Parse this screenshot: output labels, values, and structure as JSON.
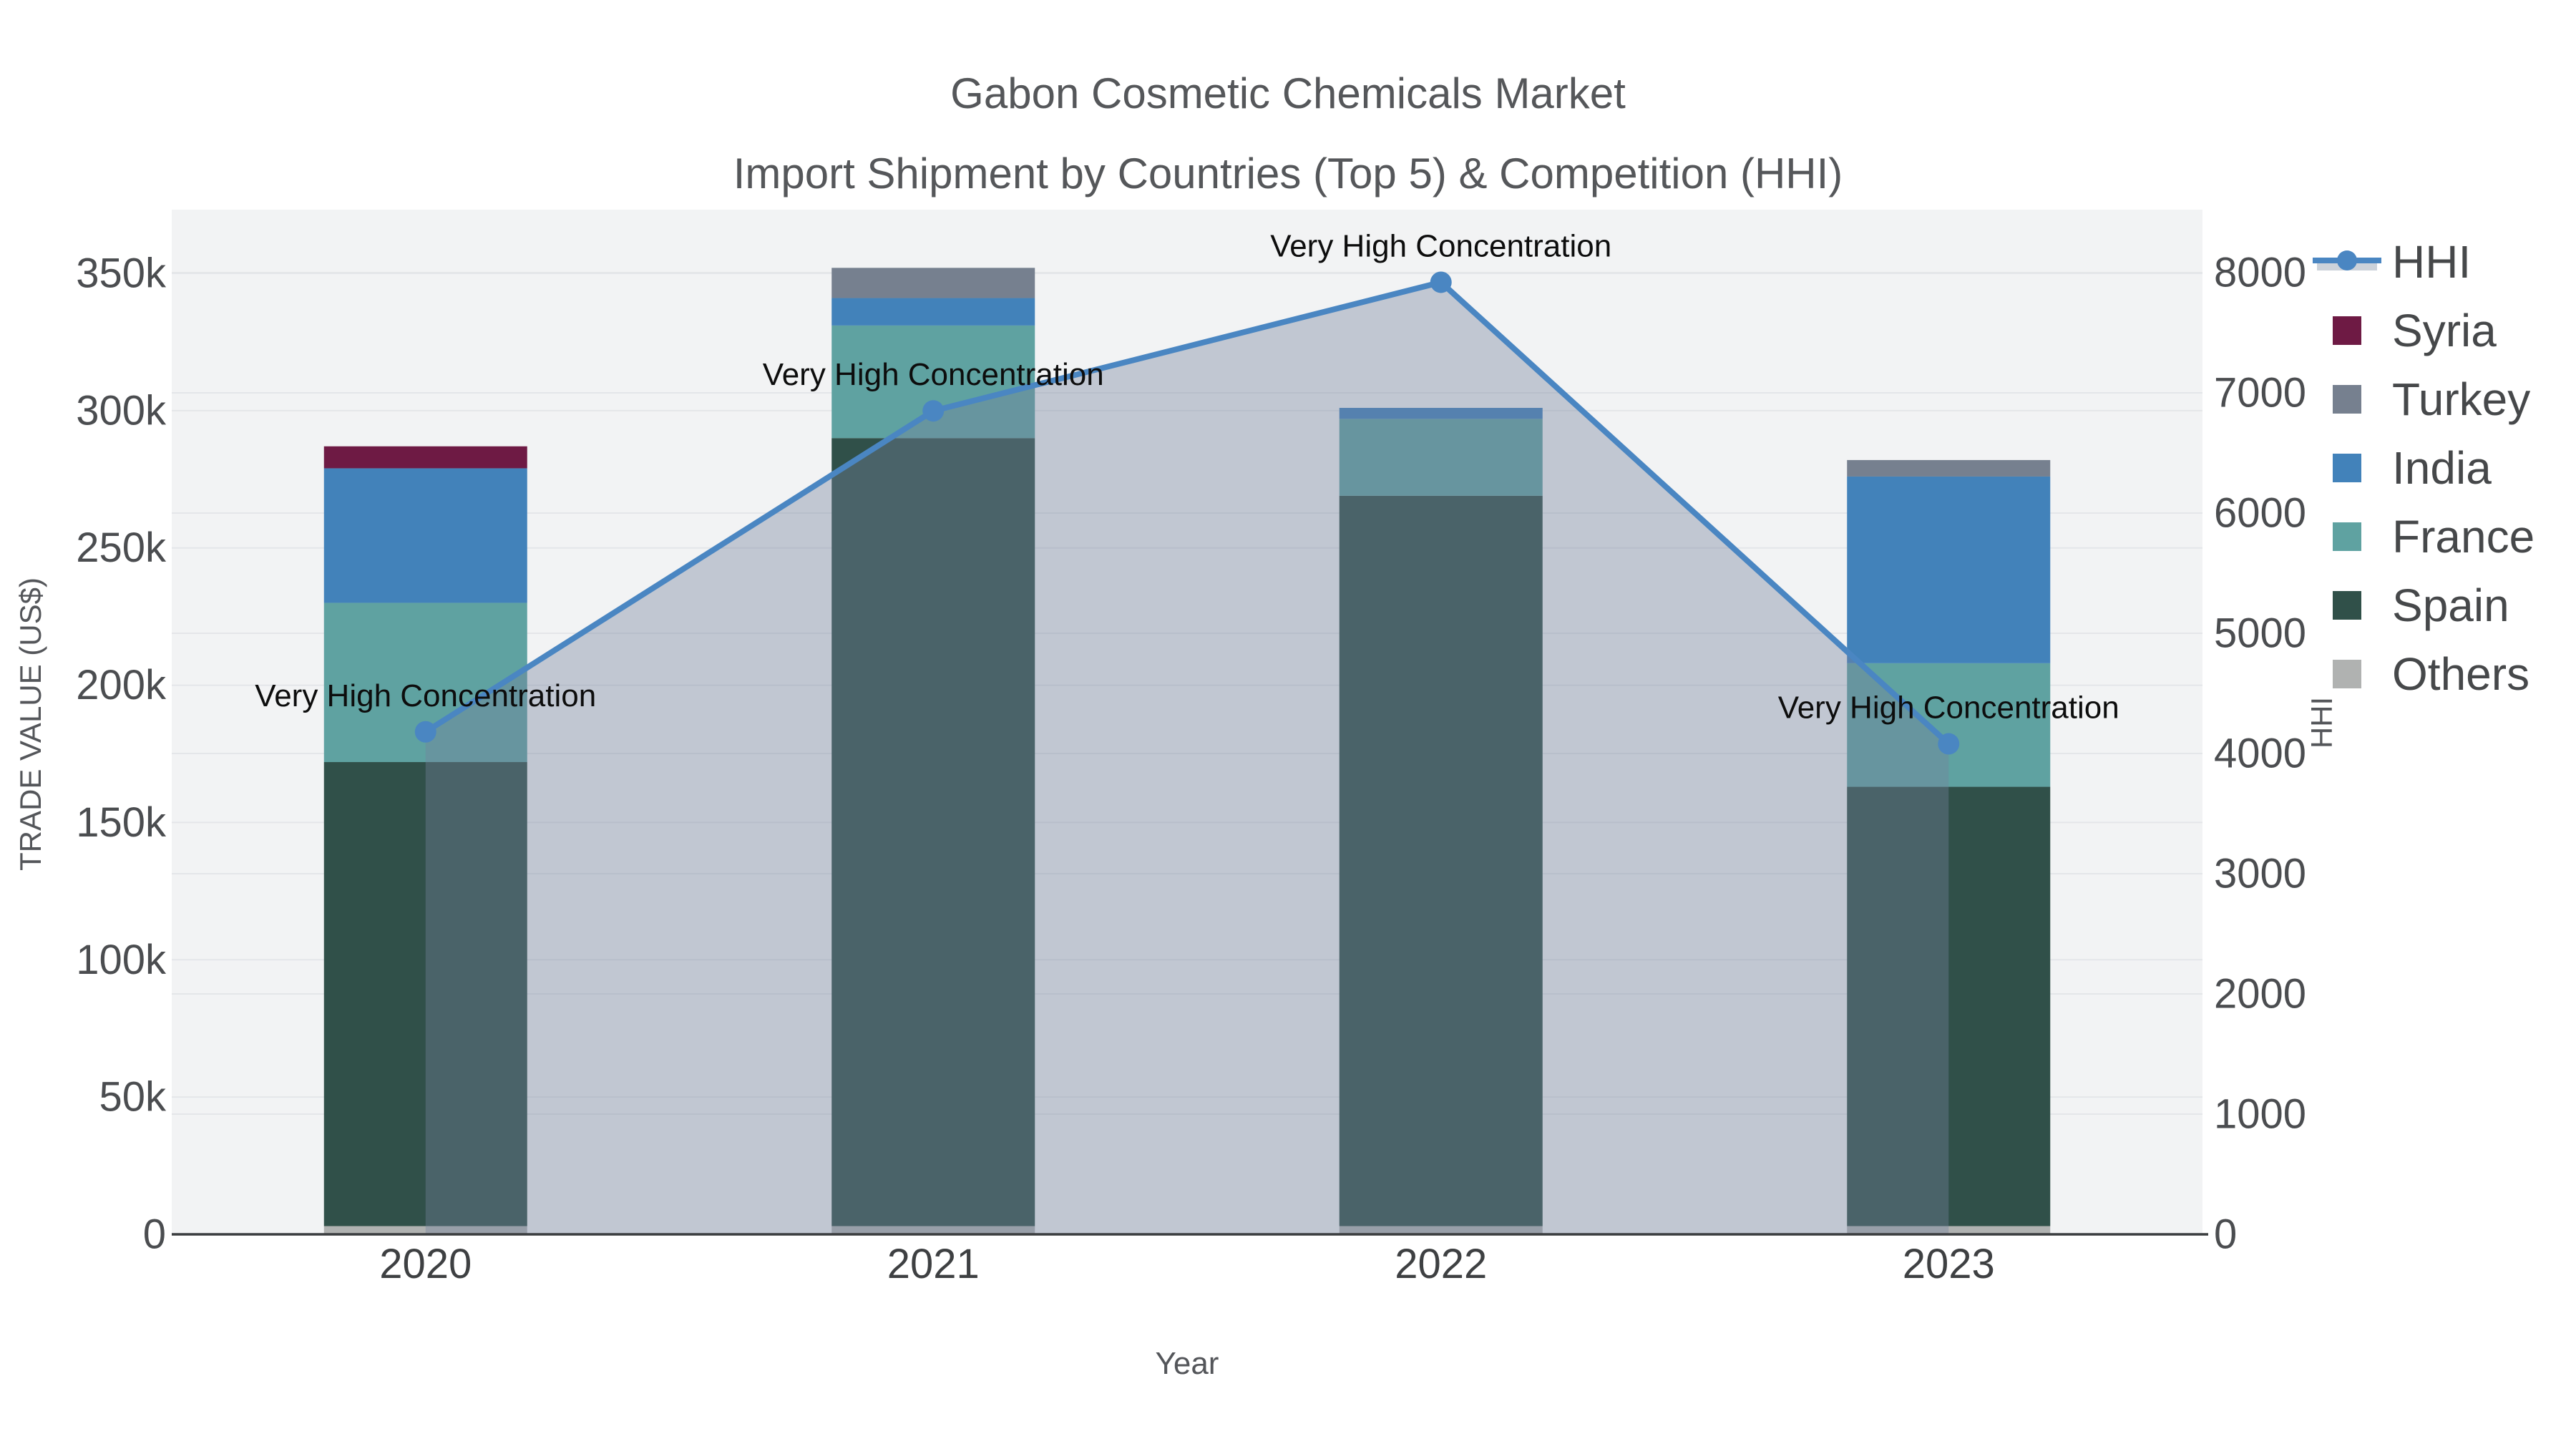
{
  "title": {
    "line1": "Gabon Cosmetic Chemicals Market",
    "line2": "Import Shipment by Countries (Top 5) & Competition (HHI)"
  },
  "axes": {
    "x_title": "Year",
    "y_left_title": "TRADE VALUE (US$)",
    "y_right_title": "HHI",
    "x_tick_labels": [
      "2020",
      "2021",
      "2022",
      "2023"
    ],
    "y_left_tick_labels": [
      "0",
      "50k",
      "100k",
      "150k",
      "200k",
      "250k",
      "300k",
      "350k"
    ],
    "y_left_tick_values_thousands": [
      0,
      50,
      100,
      150,
      200,
      250,
      300,
      350
    ],
    "y_right_tick_labels": [
      "0",
      "1000",
      "2000",
      "3000",
      "4000",
      "5000",
      "6000",
      "7000",
      "8000"
    ],
    "y_right_tick_values": [
      0,
      1000,
      2000,
      3000,
      4000,
      5000,
      6000,
      7000,
      8000
    ]
  },
  "chart_data": {
    "type": "bar",
    "subtype": "stacked-bars-with-hhi-line-area",
    "categories": [
      "2020",
      "2021",
      "2022",
      "2023"
    ],
    "values_unit": "US$ thousands (trade value, left axis)",
    "series": [
      {
        "name": "Others",
        "values": [
          3,
          3,
          3,
          3
        ],
        "color": "#b0b2b1"
      },
      {
        "name": "Spain",
        "values": [
          169,
          287,
          266,
          160
        ],
        "color": "#305049"
      },
      {
        "name": "France",
        "values": [
          58,
          41,
          28,
          45
        ],
        "color": "#5fa2a1"
      },
      {
        "name": "India",
        "values": [
          49,
          10,
          4,
          68
        ],
        "color": "#4282ba"
      },
      {
        "name": "Turkey",
        "values": [
          0,
          11,
          0,
          6
        ],
        "color": "#76808f"
      },
      {
        "name": "Syria",
        "values": [
          8,
          0,
          0,
          0
        ],
        "color": "#6e1a44"
      }
    ],
    "stack_order_bottom_to_top": [
      "Others",
      "Spain",
      "France",
      "India",
      "Turkey",
      "Syria"
    ],
    "line_series": {
      "name": "HHI",
      "axis": "right",
      "values": [
        4180,
        6850,
        7920,
        4080
      ],
      "color": "#4a86c2",
      "fill_color": "rgba(117,130,156,0.39)",
      "marker": "circle"
    },
    "annotations": [
      {
        "text": "Very High Concentration",
        "category": "2020"
      },
      {
        "text": "Very High Concentration",
        "category": "2021"
      },
      {
        "text": "Very High Concentration",
        "category": "2022"
      },
      {
        "text": "Very High Concentration",
        "category": "2023"
      }
    ],
    "ylim_left_thousands": [
      0,
      373
    ],
    "ylim_right": [
      0,
      8530
    ],
    "grid": true,
    "legend_position": "right"
  },
  "legend": {
    "items": [
      {
        "label": "HHI",
        "type": "line-with-area",
        "color": "#4a86c2"
      },
      {
        "label": "Syria",
        "type": "swatch",
        "color": "#6e1a44"
      },
      {
        "label": "Turkey",
        "type": "swatch",
        "color": "#76808f"
      },
      {
        "label": "India",
        "type": "swatch",
        "color": "#4282ba"
      },
      {
        "label": "France",
        "type": "swatch",
        "color": "#5fa2a1"
      },
      {
        "label": "Spain",
        "type": "swatch",
        "color": "#305049"
      },
      {
        "label": "Others",
        "type": "swatch",
        "color": "#b0b2b1"
      }
    ]
  },
  "style_colors": {
    "plot_background": "#f2f3f4",
    "gridline": "#e4e6e9",
    "axis_line": "#3a3d3f",
    "title_text": "#55575a",
    "tick_text": "#4b4d50",
    "annotation_text": "#0d0d0d"
  }
}
